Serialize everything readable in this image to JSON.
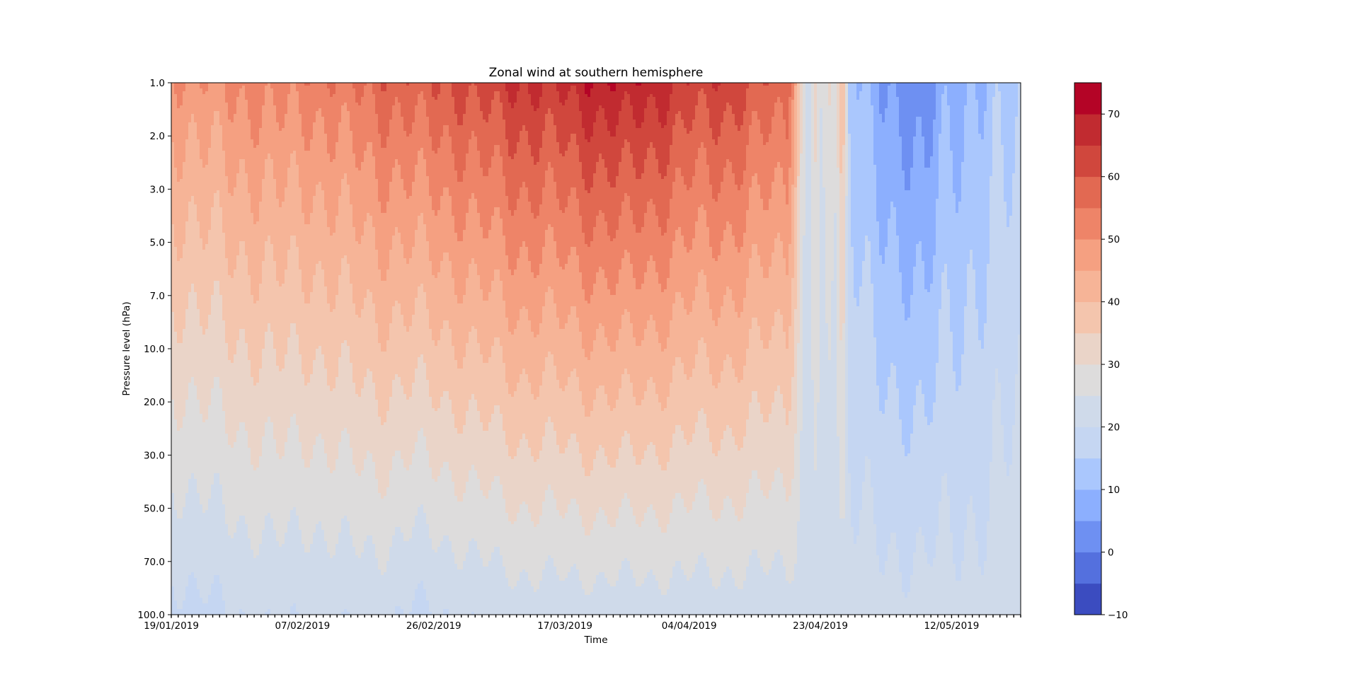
{
  "chart_data": {
    "type": "heatmap",
    "subtype": "filled-contour",
    "title": "Zonal wind at southern hemisphere",
    "xlabel": "Time",
    "ylabel": "Pressure level (hPa)",
    "x_ticks": [
      "19/01/2019",
      "07/02/2019",
      "26/02/2019",
      "17/03/2019",
      "04/04/2019",
      "23/04/2019",
      "12/05/2019"
    ],
    "y_ticks": [
      "1.0",
      "2.0",
      "3.0",
      "5.0",
      "7.0",
      "10.0",
      "20.0",
      "30.0",
      "50.0",
      "70.0",
      "100.0"
    ],
    "colorbar": {
      "levels": [
        -10,
        -5,
        0,
        5,
        10,
        15,
        20,
        25,
        30,
        35,
        40,
        45,
        50,
        55,
        60,
        65,
        70,
        75
      ],
      "tick_labels": [
        "70",
        "60",
        "50",
        "40",
        "30",
        "20",
        "10",
        "0",
        "−10"
      ],
      "tick_values": [
        70,
        60,
        50,
        40,
        30,
        20,
        10,
        0,
        -10
      ],
      "colormap": "coolwarm",
      "colors": [
        "#3b4cc0",
        "#5470de",
        "#6e90f2",
        "#8caffe",
        "#aac7fd",
        "#c5d6f2",
        "#cfdaea",
        "#dddcdc",
        "#ead4c8",
        "#f4c5ad",
        "#f6b497",
        "#f5a081",
        "#ee8468",
        "#e26952",
        "#d0473d",
        "#c12b30",
        "#b40426"
      ]
    },
    "x_dates_dayindex": {
      "19/01/2019": 0,
      "07/02/2019": 19,
      "26/02/2019": 38,
      "17/03/2019": 57,
      "04/04/2019": 75,
      "23/04/2019": 94,
      "12/05/2019": 113
    },
    "time_profiles": [
      {
        "day": 0,
        "u_top": 48,
        "u_bottom": 18
      },
      {
        "day": 5,
        "u_top": 50,
        "u_bottom": 19
      },
      {
        "day": 10,
        "u_top": 51,
        "u_bottom": 20
      },
      {
        "day": 15,
        "u_top": 53,
        "u_bottom": 21
      },
      {
        "day": 20,
        "u_top": 52,
        "u_bottom": 20
      },
      {
        "day": 25,
        "u_top": 55,
        "u_bottom": 21
      },
      {
        "day": 30,
        "u_top": 57,
        "u_bottom": 21
      },
      {
        "day": 35,
        "u_top": 59,
        "u_bottom": 19
      },
      {
        "day": 40,
        "u_top": 60,
        "u_bottom": 20
      },
      {
        "day": 45,
        "u_top": 63,
        "u_bottom": 21
      },
      {
        "day": 50,
        "u_top": 65,
        "u_bottom": 22
      },
      {
        "day": 55,
        "u_top": 66,
        "u_bottom": 22
      },
      {
        "day": 60,
        "u_top": 68,
        "u_bottom": 22
      },
      {
        "day": 65,
        "u_top": 70,
        "u_bottom": 22
      },
      {
        "day": 70,
        "u_top": 67,
        "u_bottom": 22
      },
      {
        "day": 75,
        "u_top": 64,
        "u_bottom": 22
      },
      {
        "day": 80,
        "u_top": 63,
        "u_bottom": 22
      },
      {
        "day": 85,
        "u_top": 60,
        "u_bottom": 22
      },
      {
        "day": 89,
        "u_top": 58,
        "u_bottom": 22
      },
      {
        "day": 90,
        "u_top": 45,
        "u_bottom": 22
      },
      {
        "day": 91,
        "u_top": 32,
        "u_bottom": 22
      },
      {
        "day": 92,
        "u_top": 22,
        "u_bottom": 22
      },
      {
        "day": 93,
        "u_top": 30,
        "u_bottom": 22
      },
      {
        "day": 94,
        "u_top": 24,
        "u_bottom": 22
      },
      {
        "day": 95,
        "u_top": 35,
        "u_bottom": 22
      },
      {
        "day": 96,
        "u_top": 28,
        "u_bottom": 22
      },
      {
        "day": 97,
        "u_top": 40,
        "u_bottom": 22
      },
      {
        "day": 98,
        "u_top": 14,
        "u_bottom": 22
      },
      {
        "day": 100,
        "u_top": 8,
        "u_bottom": 22
      },
      {
        "day": 103,
        "u_top": 5,
        "u_bottom": 22
      },
      {
        "day": 106,
        "u_top": 4,
        "u_bottom": 22
      },
      {
        "day": 109,
        "u_top": 0,
        "u_bottom": 22
      },
      {
        "day": 111,
        "u_top": 6,
        "u_bottom": 22
      },
      {
        "day": 115,
        "u_top": 10,
        "u_bottom": 22
      },
      {
        "day": 119,
        "u_top": 12,
        "u_bottom": 22
      },
      {
        "day": 123,
        "u_top": 13,
        "u_bottom": 24
      }
    ]
  }
}
